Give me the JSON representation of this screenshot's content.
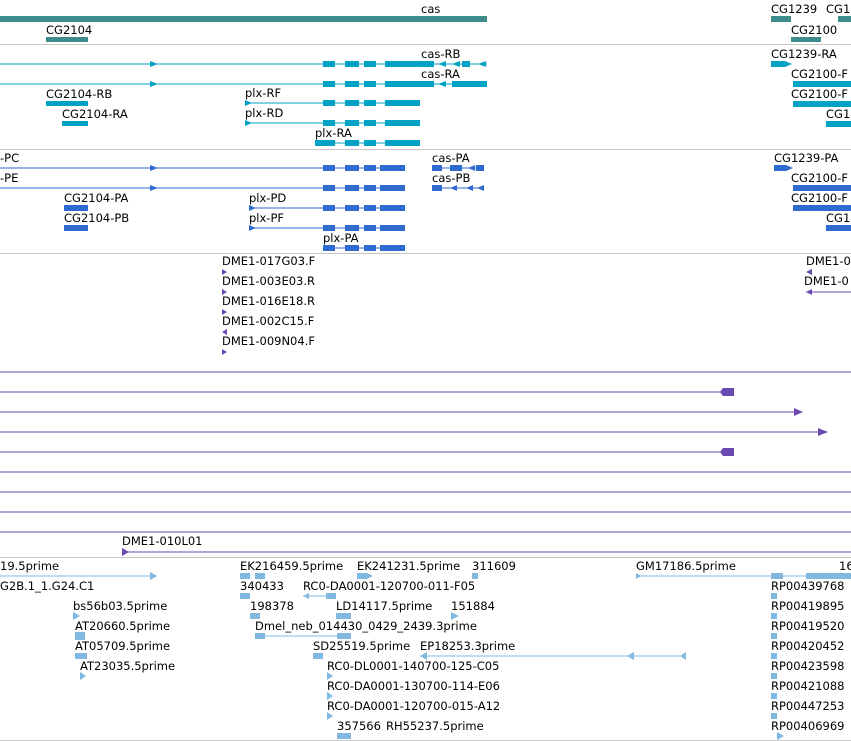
{
  "colors": {
    "gene": "#3d8b8b",
    "transcript_cyan": "#00a3c4",
    "transcript_blue": "#2f6acf",
    "clone_purple": "#6a4ab0",
    "est_light_blue": "#80b8e0",
    "divider": "#c8c8c8"
  },
  "tracks": {
    "genes": {
      "labels": {
        "cas": "cas",
        "cg2104": "CG2104",
        "cg1239": "CG1239",
        "cg1_trunc": "CG1",
        "cg2100": "CG2100"
      }
    },
    "transcripts_cyan": {
      "labels": {
        "cas_rb": "cas-RB",
        "cas_ra": "cas-RA",
        "cg2104_rb": "CG2104-RB",
        "cg2104_ra": "CG2104-RA",
        "plx_rf": "plx-RF",
        "plx_rd": "plx-RD",
        "plx_ra": "plx-RA",
        "cg1239_ra": "CG1239-RA",
        "cg2100_r1": "CG2100-F",
        "cg2100_r2": "CG2100-F",
        "cg1_trunc": "CG1"
      }
    },
    "transcripts_blue": {
      "labels": {
        "pc": "-PC",
        "pe": "-PE",
        "cas_pa": "cas-PA",
        "cas_pb": "cas-PB",
        "cg2104_pa": "CG2104-PA",
        "cg2104_pb": "CG2104-PB",
        "plx_pd": "plx-PD",
        "plx_pf": "plx-PF",
        "plx_pa": "plx-PA",
        "cg1239_pa": "CG1239-PA",
        "cg2100_p1": "CG2100-F",
        "cg2100_p2": "CG2100-F",
        "cg1_trunc": "CG1"
      }
    },
    "clones": {
      "labels": {
        "c1": "DME1-017G03.F",
        "c2": "DME1-003E03.R",
        "c3": "DME1-016E18.R",
        "c4": "DME1-002C15.F",
        "c5": "DME1-009N04.F",
        "r1": "DME1-0",
        "r2": "DME1-0",
        "c6": "DME1-010L01"
      }
    },
    "ests": {
      "labels": {
        "e1": "19.5prime",
        "e2": "EK216459.5prime",
        "e3": "EK241231.5prime",
        "e4": "311609",
        "e5": "GM17186.5prime",
        "e6": "16",
        "e7": "G2B.1_1.G24.C1",
        "e8": "340433",
        "e9": "RC0-DA0001-120700-011-F05",
        "e10": "RP00439768",
        "e11": "bs56b03.5prime",
        "e12": "198378",
        "e13": "LD14117.5prime",
        "e14": "151884",
        "e15": "RP00419895",
        "e16": "AT20660.5prime",
        "e17": "Dmel_neb_014430_0429_2439.3prime",
        "e18": "RP00419520",
        "e19": "AT05709.5prime",
        "e20": "SD25519.5prime",
        "e21": "EP18253.3prime",
        "e22": "RP00420452",
        "e23": "AT23035.5prime",
        "e24": "RC0-DL0001-140700-125-C05",
        "e25": "RP00423598",
        "e26": "RC0-DA0001-130700-114-E06",
        "e27": "RP00421088",
        "e28": "RC0-DA0001-120700-015-A12",
        "e29": "RP00447253",
        "e30": "357566",
        "e31": "RH55237.5prime",
        "e32": "RP00406969"
      }
    }
  }
}
